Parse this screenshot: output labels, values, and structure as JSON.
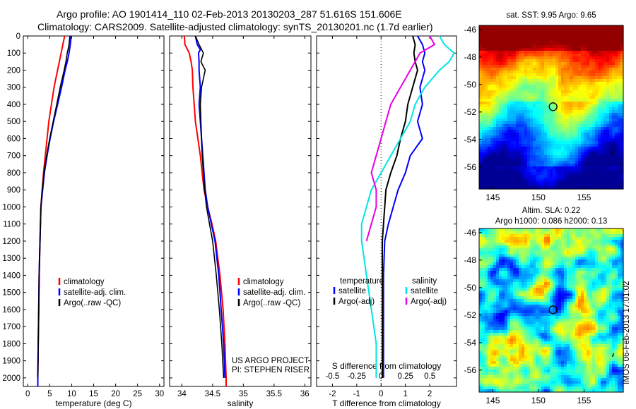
{
  "header": {
    "line1": "Argo profile: AO 1901414_110 02-Feb-2013 20130203_287 51.616S 151.606E",
    "line2": "Climatology: CARS2009. Satellite-adjusted climatology: synTS_20130201.nc (1.7d earlier)"
  },
  "colors": {
    "climatology": "#ff0000",
    "satellite": "#0000ff",
    "argo": "#000000",
    "sat_salinity": "#00e5e5",
    "argo_salinity": "#e600e6"
  },
  "depth_ticks": [
    0,
    100,
    200,
    300,
    400,
    500,
    600,
    700,
    800,
    900,
    1000,
    1100,
    1200,
    1300,
    1400,
    1500,
    1600,
    1700,
    1800,
    1900,
    2000
  ],
  "chart_data": [
    {
      "type": "line",
      "xlabel": "temperature (deg C)",
      "ylim": [
        2050,
        0
      ],
      "xlim": [
        -1,
        31
      ],
      "xticks": [
        "0",
        "5",
        "10",
        "15",
        "20",
        "25",
        "30"
      ],
      "xtick_values": [
        0,
        5,
        10,
        15,
        20,
        25,
        30
      ],
      "legend": [
        "climatology",
        "satellite-adj. clim.",
        "Argo(..raw -QC)"
      ],
      "series": [
        {
          "name": "climatology",
          "color": "#ff0000",
          "depth": [
            0,
            50,
            100,
            150,
            200,
            300,
            400,
            500,
            600,
            700,
            800,
            900,
            1000,
            1200,
            1400,
            1600,
            1800,
            2000,
            2050
          ],
          "x": [
            8.4,
            8.0,
            7.6,
            7.2,
            6.8,
            6.0,
            5.4,
            4.8,
            4.4,
            4.0,
            3.6,
            3.3,
            3.0,
            2.8,
            2.6,
            2.5,
            2.4,
            2.3,
            2.3
          ]
        },
        {
          "name": "satellite-adj. clim.",
          "color": "#0000ff",
          "depth": [
            0,
            50,
            100,
            150,
            200,
            300,
            400,
            500,
            600,
            700,
            800,
            900,
            1000,
            1200,
            1400,
            1600,
            1800,
            2000,
            2050
          ],
          "x": [
            9.9,
            9.7,
            9.4,
            9.0,
            8.5,
            7.7,
            6.8,
            5.9,
            5.1,
            4.4,
            3.8,
            3.4,
            3.0,
            2.8,
            2.6,
            2.5,
            2.4,
            2.3,
            2.3
          ]
        },
        {
          "name": "Argo(..raw -QC)",
          "color": "#000000",
          "depth": [
            0,
            50,
            100,
            150,
            200,
            300,
            400,
            500,
            600,
            700,
            800,
            900,
            1000,
            1200,
            1400,
            1600,
            1800,
            2000
          ],
          "x": [
            9.6,
            9.4,
            9.0,
            8.7,
            8.3,
            7.4,
            6.6,
            5.8,
            5.0,
            4.3,
            3.7,
            3.3,
            3.0,
            2.8,
            2.6,
            2.5,
            2.4,
            2.3
          ]
        }
      ]
    },
    {
      "type": "line",
      "xlabel": "salinity",
      "ylim": [
        2050,
        0
      ],
      "xlim": [
        33.8,
        36.1
      ],
      "xticks": [
        "34",
        "34.5",
        "35",
        "35.5",
        "36"
      ],
      "xtick_values": [
        34,
        34.5,
        35,
        35.5,
        36
      ],
      "legend": [
        "climatology",
        "satellite-adj. clim.",
        "Argo(..raw -QC)"
      ],
      "credits": [
        "US ARGO PROJECT",
        "PI: STEPHEN RISER"
      ],
      "series": [
        {
          "name": "climatology",
          "color": "#ff0000",
          "depth": [
            0,
            50,
            100,
            150,
            200,
            300,
            400,
            500,
            600,
            700,
            800,
            900,
            1000,
            1100,
            1200,
            1400,
            1600,
            1800,
            2000,
            2050
          ],
          "x": [
            34.04,
            34.05,
            34.12,
            34.15,
            34.17,
            34.18,
            34.2,
            34.22,
            34.26,
            34.3,
            34.33,
            34.36,
            34.42,
            34.49,
            34.55,
            34.62,
            34.67,
            34.7,
            34.72,
            34.72
          ]
        },
        {
          "name": "satellite-adj. clim.",
          "color": "#0000ff",
          "depth": [
            0,
            50,
            80,
            100,
            150,
            200,
            300,
            400,
            500,
            600,
            700,
            800,
            900,
            1000,
            1100,
            1200,
            1400,
            1600,
            1800,
            2000
          ],
          "x": [
            34.22,
            34.25,
            34.3,
            34.27,
            34.28,
            34.28,
            34.3,
            34.28,
            34.3,
            34.32,
            34.34,
            34.36,
            34.38,
            34.42,
            34.48,
            34.54,
            34.6,
            34.64,
            34.68,
            34.7
          ]
        },
        {
          "name": "Argo(..raw -QC)",
          "color": "#000000",
          "depth": [
            0,
            50,
            100,
            150,
            200,
            300,
            400,
            500,
            600,
            700,
            800,
            900,
            1000,
            1100,
            1200,
            1400,
            1600,
            1800,
            2000
          ],
          "x": [
            34.22,
            34.28,
            34.35,
            34.31,
            34.38,
            34.32,
            34.3,
            34.31,
            34.32,
            34.33,
            34.35,
            34.37,
            34.4,
            34.45,
            34.5,
            34.56,
            34.61,
            34.65,
            34.68
          ]
        }
      ]
    },
    {
      "type": "line",
      "ylim": [
        2050,
        0
      ],
      "t_axis": {
        "xlabel": "T difference from climatology",
        "ticks": [
          "-2",
          "-1",
          "0",
          "1",
          "2"
        ],
        "tick_values": [
          -2,
          -1,
          0,
          1,
          2
        ],
        "xlim": [
          -2.65,
          3.1
        ]
      },
      "s_axis": {
        "xlabel": "S difference from climatology",
        "ticks": [
          "-0.5",
          "-0.25",
          "0",
          "0.25",
          "0.5"
        ],
        "tick_values": [
          -0.5,
          -0.25,
          0,
          0.25,
          0.5
        ]
      },
      "legend_temperature": {
        "title": "temperature",
        "items": [
          "satellite",
          "Argo(-adj)"
        ]
      },
      "legend_salinity": {
        "title": "salinity",
        "items": [
          "satellite",
          "Argo(-adj)"
        ]
      },
      "series": [
        {
          "name": "satellite",
          "group": "temperature",
          "color": "#0000ff",
          "depth": [
            0,
            50,
            100,
            150,
            200,
            300,
            400,
            500,
            600,
            700,
            800,
            900,
            1000,
            1100,
            1200,
            1400,
            1600,
            1800,
            2000
          ],
          "x": [
            1.5,
            1.7,
            1.8,
            1.7,
            1.8,
            1.6,
            1.7,
            1.5,
            1.7,
            1.2,
            1.0,
            0.7,
            0.5,
            0.3,
            0.15,
            0.1,
            0.1,
            0.1,
            0.1
          ]
        },
        {
          "name": "Argo(-adj)",
          "group": "temperature",
          "color": "#000000",
          "depth": [
            0,
            50,
            100,
            150,
            200,
            300,
            400,
            500,
            600,
            700,
            800,
            900,
            1000,
            1100,
            1200,
            1400,
            1600,
            1800,
            2000
          ],
          "x": [
            1.3,
            1.4,
            1.35,
            1.4,
            1.5,
            1.3,
            1.1,
            1.0,
            0.8,
            0.65,
            0.4,
            0.2,
            0.15,
            0.1,
            0.05,
            0.05,
            0.05,
            0.05,
            0.05
          ]
        },
        {
          "name": "satellite",
          "group": "salinity",
          "color": "#00e5e5",
          "depth": [
            0,
            50,
            100,
            150,
            200,
            300,
            400,
            500,
            600,
            700,
            800,
            900,
            1000,
            1100,
            1200,
            1400,
            1600,
            1800,
            2000
          ],
          "x": [
            0.6,
            0.65,
            0.75,
            0.7,
            0.6,
            0.45,
            0.35,
            0.3,
            0.2,
            0.1,
            0.0,
            -0.1,
            -0.15,
            -0.2,
            -0.2,
            -0.15,
            -0.1,
            -0.05,
            -0.05
          ]
        },
        {
          "name": "Argo(-adj)",
          "group": "salinity",
          "color": "#e600e6",
          "depth": [
            0,
            50,
            100,
            150,
            200,
            300,
            400,
            500,
            600,
            700,
            800,
            900,
            1000,
            1100,
            1200
          ],
          "x": [
            0.5,
            0.55,
            0.4,
            0.35,
            0.3,
            0.2,
            0.1,
            0.05,
            0.0,
            -0.05,
            -0.1,
            -0.05,
            -0.05,
            -0.1,
            -0.15
          ]
        }
      ]
    },
    {
      "type": "heatmap",
      "title": "sat. SST: 9.95  Argo: 9.65",
      "xticks": [
        "145",
        "150",
        "155"
      ],
      "xtick_values": [
        145,
        150,
        155
      ],
      "yticks": [
        "-46",
        "-48",
        "-50",
        "-52",
        "-54",
        "-56"
      ],
      "ytick_values": [
        -46,
        -48,
        -50,
        -52,
        -54,
        -56
      ],
      "xlim": [
        143.5,
        159.3
      ],
      "ylim": [
        -57.6,
        -45.7
      ],
      "marker": [
        151.606,
        -51.616
      ]
    },
    {
      "type": "heatmap",
      "title": "Altim. SLA: 0.22",
      "subtitle": "Argo h1000: 0.086  h2000: 0.13",
      "xticks": [
        "145",
        "150",
        "155"
      ],
      "xtick_values": [
        145,
        150,
        155
      ],
      "yticks": [
        "-46",
        "-48",
        "-50",
        "-52",
        "-54",
        "-56"
      ],
      "ytick_values": [
        -46,
        -48,
        -50,
        -52,
        -54,
        -56
      ],
      "xlim": [
        143.5,
        159.3
      ],
      "ylim": [
        -57.6,
        -45.7
      ],
      "marker": [
        151.606,
        -51.616
      ],
      "side_label": "IMOS 06-Feb-2013 17:01:02"
    }
  ]
}
